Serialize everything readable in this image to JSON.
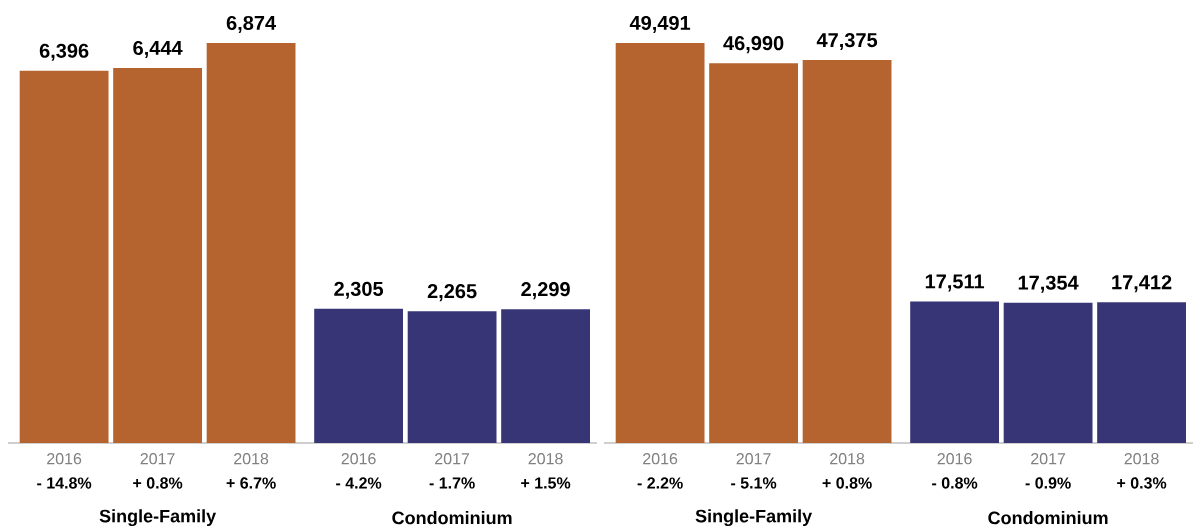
{
  "chart_data": [
    {
      "type": "bar",
      "categories": [
        "2016",
        "2017",
        "2018",
        "2016",
        "2017",
        "2018"
      ],
      "values": [
        6396,
        6444,
        6874,
        2305,
        2265,
        2299
      ],
      "colors": [
        "#b5632f",
        "#b5632f",
        "#b5632f",
        "#383577",
        "#383577",
        "#383577"
      ],
      "value_labels": [
        "6,396",
        "6,444",
        "6,874",
        "2,305",
        "2,265",
        "2,299"
      ],
      "annotations": [
        "- 14.8%",
        "+ 0.8%",
        "+ 6.7%",
        "- 4.2%",
        "- 1.7%",
        "+ 1.5%",
        "Single-Family",
        "Condominium"
      ]
    },
    {
      "type": "bar",
      "categories": [
        "2016",
        "2017",
        "2018",
        "2016",
        "2017",
        "2018"
      ],
      "values": [
        49491,
        46990,
        47375,
        17511,
        17354,
        17412
      ],
      "colors": [
        "#b5632f",
        "#b5632f",
        "#b5632f",
        "#383577",
        "#383577",
        "#383577"
      ],
      "value_labels": [
        "49,491",
        "46,990",
        "47,375",
        "17,511",
        "17,354",
        "17,412"
      ],
      "annotations": [
        "- 2.2%",
        "- 5.1%",
        "+ 0.8%",
        "- 0.8%",
        "- 0.9%",
        "+ 0.3%",
        "Single-Family",
        "Condominium"
      ]
    }
  ]
}
